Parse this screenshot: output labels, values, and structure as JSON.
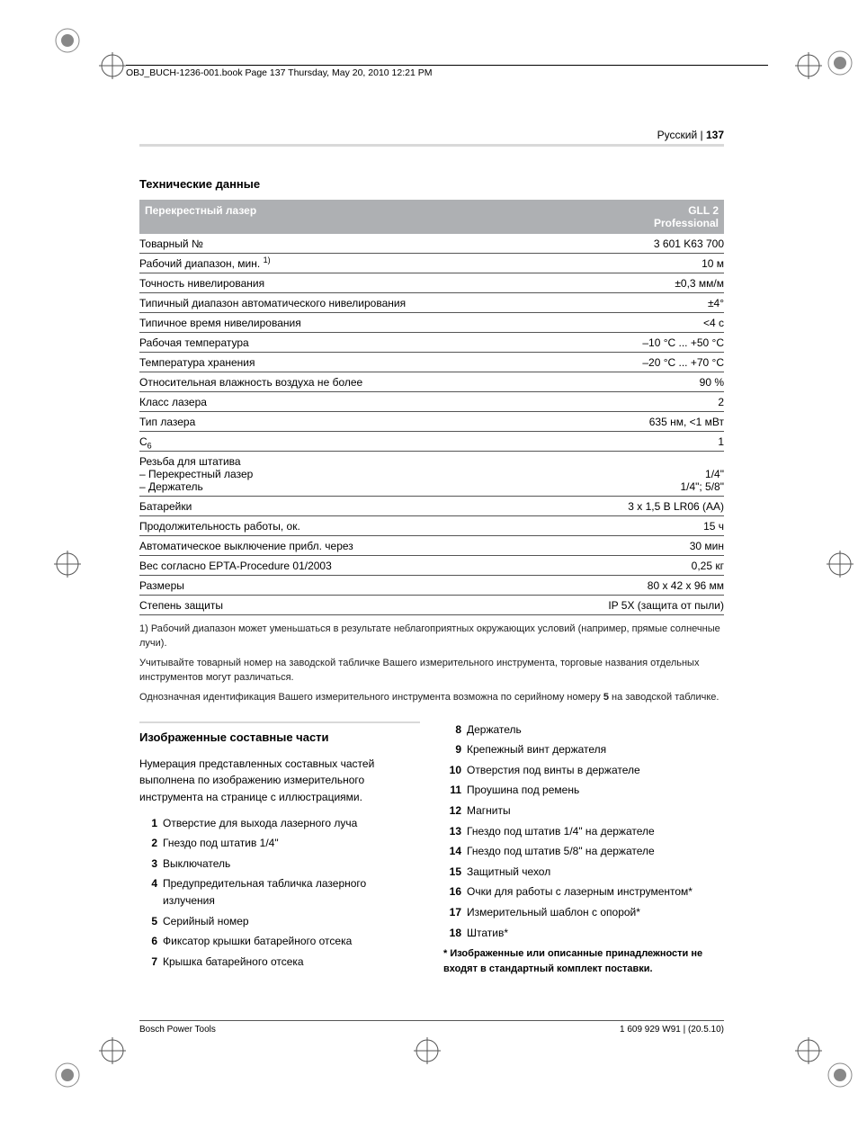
{
  "header_text": "OBJ_BUCH-1236-001.book  Page 137  Thursday, May 20, 2010  12:21 PM",
  "lang_label": "Русский",
  "page_num": "137",
  "section_tech": "Технические данные",
  "spec_header_left": "Перекрестный лазер",
  "spec_header_right_1": "GLL 2",
  "spec_header_right_2": "Professional",
  "rows": [
    {
      "l": "Товарный №",
      "r": "3 601 K63 700"
    },
    {
      "l": "Рабочий диапазон, мин. ",
      "sup": "1)",
      "r": "10 м"
    },
    {
      "l": "Точность нивелирования",
      "r": "±0,3 мм/м"
    },
    {
      "l": "Типичный диапазон автоматического нивелирования",
      "r": "±4°"
    },
    {
      "l": "Типичное время нивелирования",
      "r": "<4 с"
    },
    {
      "l": "Рабочая температура",
      "r": "–10 °C ... +50 °C"
    },
    {
      "l": "Температура хранения",
      "r": "–20 °C ... +70 °C"
    },
    {
      "l": "Относительная влажность воздуха не более",
      "r": "90 %"
    },
    {
      "l": "Класс лазера",
      "r": "2"
    },
    {
      "l": "Тип лазера",
      "r": "635 нм, <1 мВт"
    },
    {
      "l_html": "C<sub>6</sub>",
      "r": "1"
    },
    {
      "multi": true,
      "l_lines": [
        "Резьба для штатива",
        "– Перекрестный лазер",
        "– Держатель"
      ],
      "r_lines": [
        "",
        "1/4\"",
        "1/4\"; 5/8\""
      ]
    },
    {
      "l": "Батарейки",
      "r": "3 x 1,5 В LR06 (AA)"
    },
    {
      "l": "Продолжительность работы, ок.",
      "r": "15 ч"
    },
    {
      "l": "Автоматическое выключение прибл. через",
      "r": "30 мин"
    },
    {
      "l": "Вес согласно EPTA-Procedure 01/2003",
      "r": "0,25 кг"
    },
    {
      "l": "Размеры",
      "r": "80 x 42 x 96 мм"
    },
    {
      "l": "Степень защиты",
      "r": "IP 5X (защита от пыли)"
    }
  ],
  "footnotes": [
    "1) Рабочий диапазон может уменьшаться в результате неблагоприятных окружающих условий (например, прямые солнечные лучи).",
    "Учитывайте товарный номер на заводской табличке Вашего измерительного инструмента, торговые названия отдельных инструментов могут различаться.",
    "Однозначная идентификация Вашего измерительного инструмента возможна по серийному номеру <b>5</b> на заводской табличке."
  ],
  "section_parts": "Изображенные составные части",
  "parts_intro": "Нумерация представленных составных частей выполнена по изображению измерительного инструмента на странице с иллюстрациями.",
  "parts_left": [
    {
      "n": "1",
      "t": "Отверстие для выхода лазерного луча"
    },
    {
      "n": "2",
      "t": "Гнездо под штатив 1/4\""
    },
    {
      "n": "3",
      "t": "Выключатель"
    },
    {
      "n": "4",
      "t": "Предупредительная табличка лазерного излучения"
    },
    {
      "n": "5",
      "t": "Серийный номер"
    },
    {
      "n": "6",
      "t": "Фиксатор крышки батарейного отсека"
    },
    {
      "n": "7",
      "t": "Крышка батарейного отсека"
    }
  ],
  "parts_right": [
    {
      "n": "8",
      "t": "Держатель"
    },
    {
      "n": "9",
      "t": "Крепежный винт держателя"
    },
    {
      "n": "10",
      "t": "Отверстия под винты в держателе"
    },
    {
      "n": "11",
      "t": "Проушина под ремень"
    },
    {
      "n": "12",
      "t": "Магниты"
    },
    {
      "n": "13",
      "t": "Гнездо под штатив 1/4\" на держателе"
    },
    {
      "n": "14",
      "t": "Гнездо под штатив 5/8\" на держателе"
    },
    {
      "n": "15",
      "t": "Защитный чехол"
    },
    {
      "n": "16",
      "t": "Очки для работы с лазерным инструментом*"
    },
    {
      "n": "17",
      "t": "Измерительный шаблон с опорой*"
    },
    {
      "n": "18",
      "t": "Штатив*"
    }
  ],
  "parts_note": "* Изображенные или описанные принадлежности не входят в стандартный комплект поставки.",
  "footer_left": "Bosch Power Tools",
  "footer_right": "1 609 929 W91 | (20.5.10)"
}
